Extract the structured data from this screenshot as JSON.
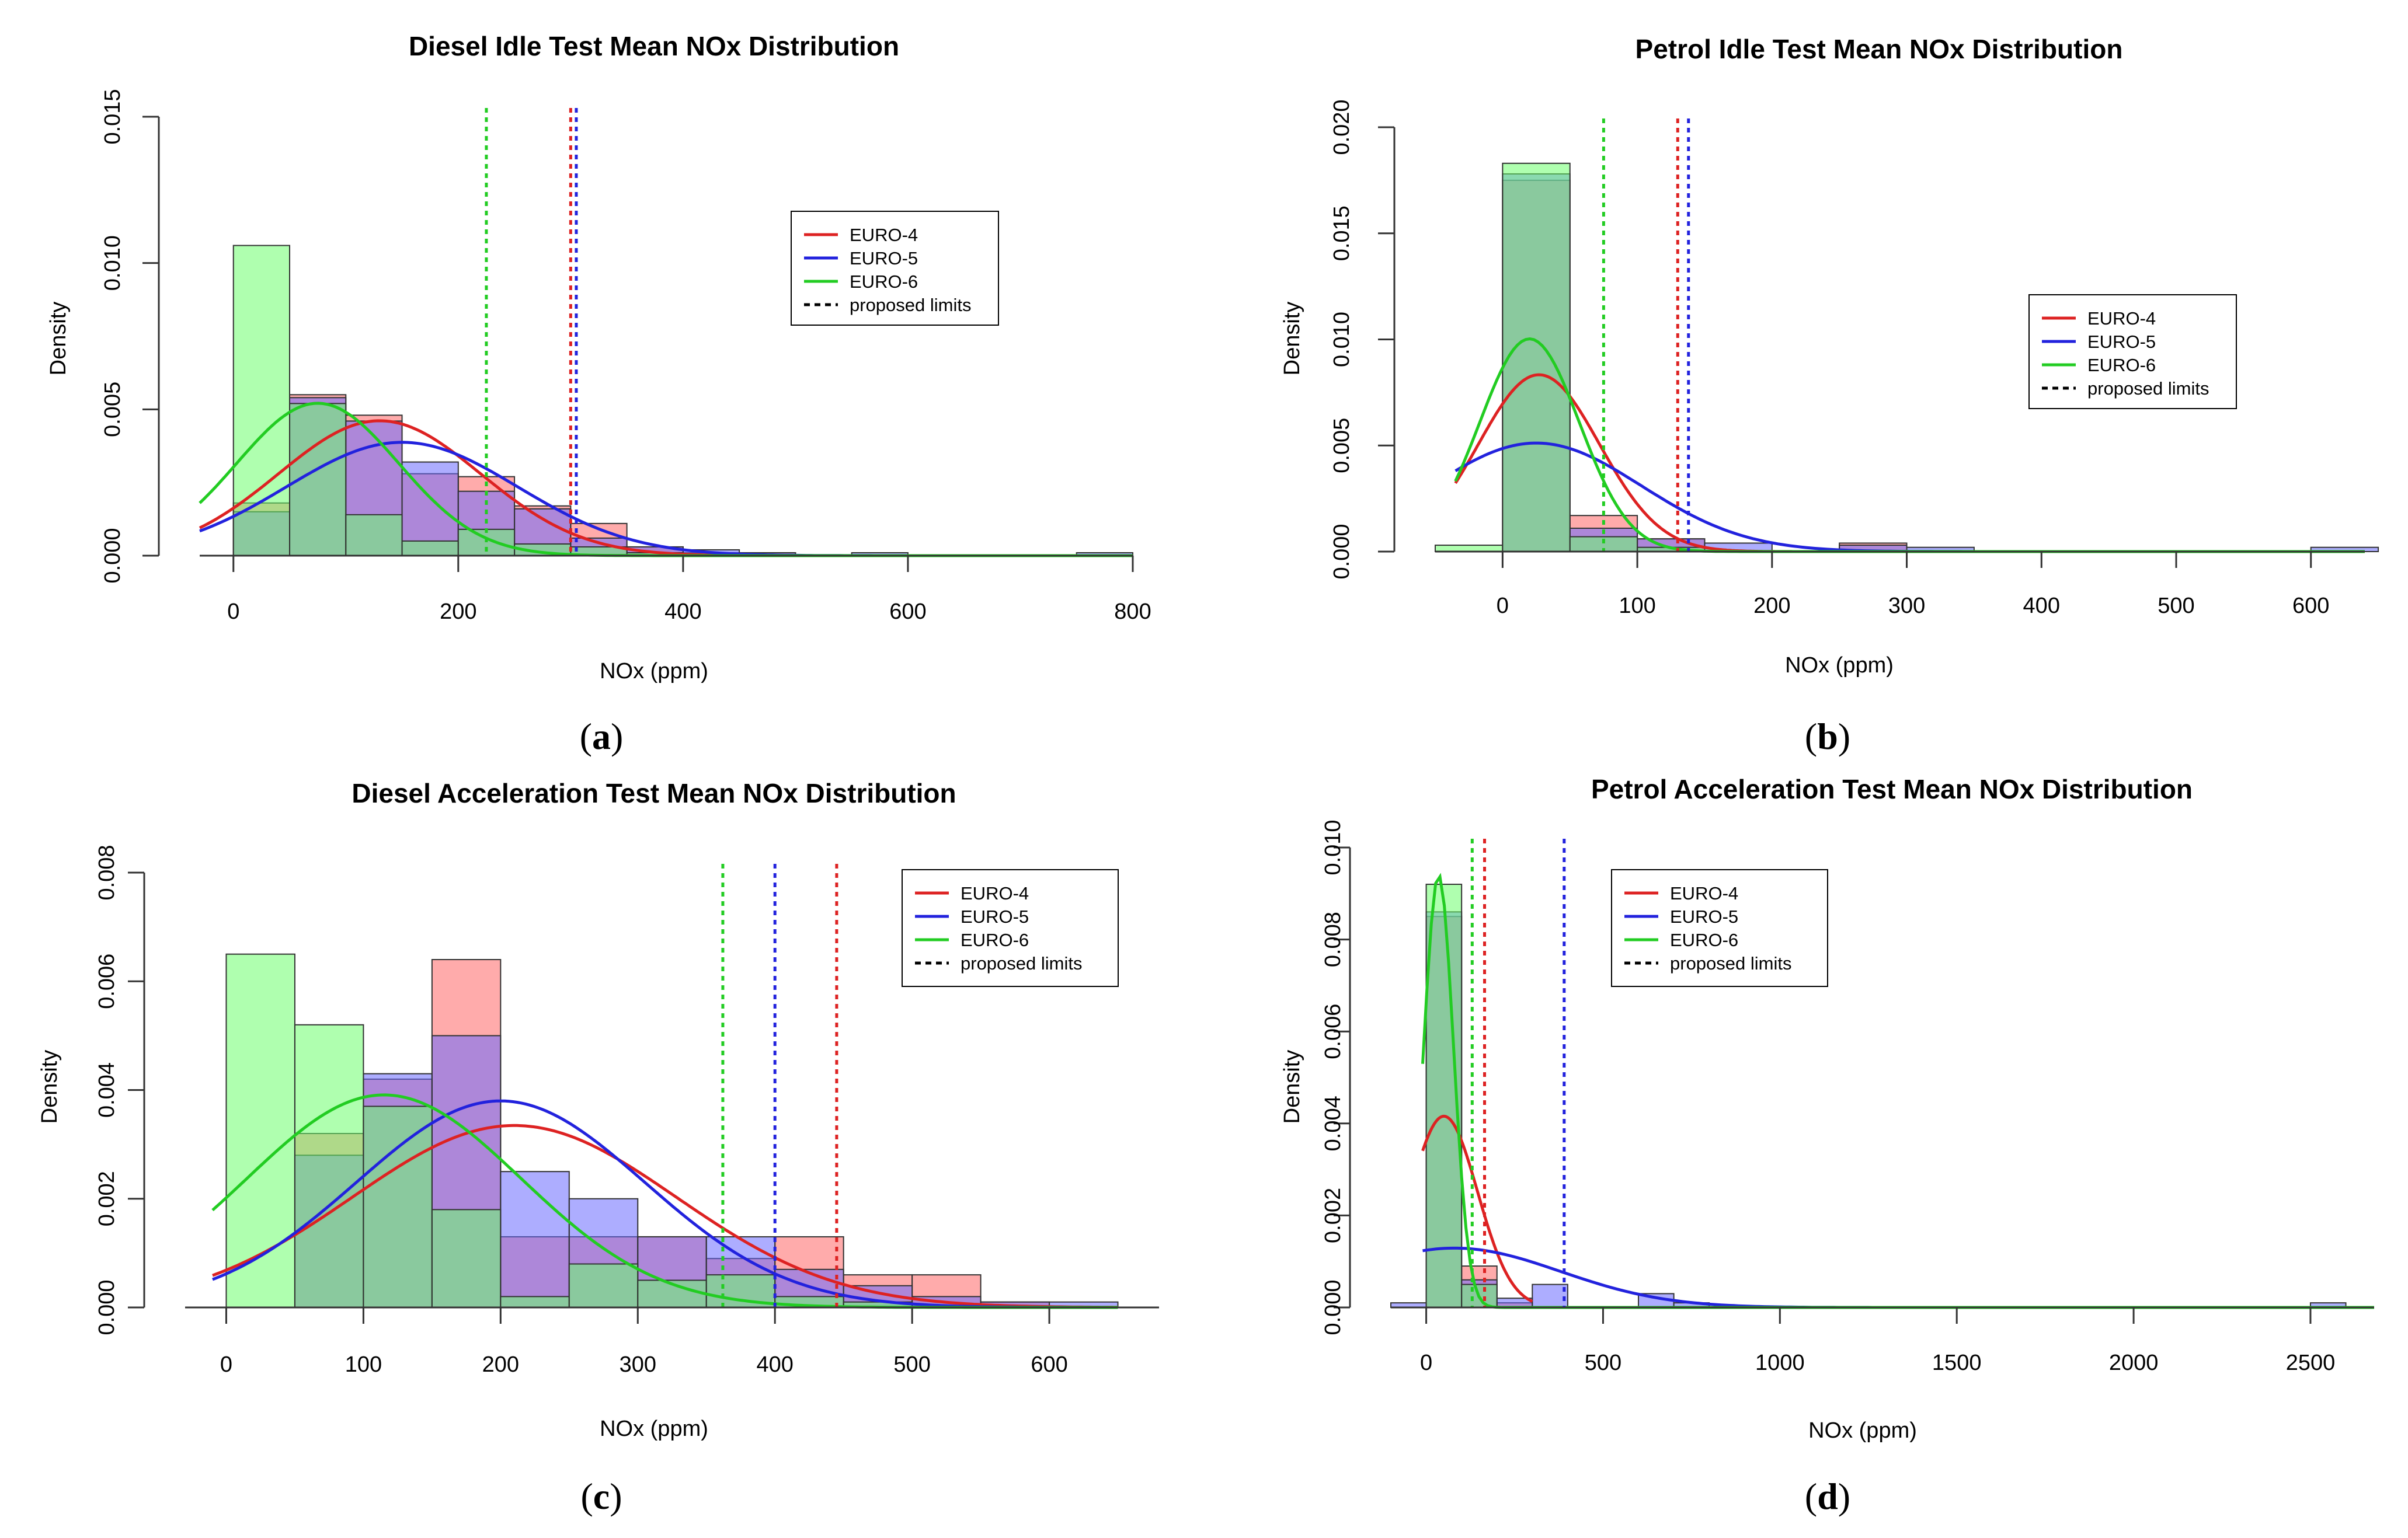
{
  "colors": {
    "euro4_line": "#dd2222",
    "euro5_line": "#2222dd",
    "euro6_line": "#22cc22",
    "euro4_fill": "#ff6666",
    "euro5_fill": "#6a6aff",
    "euro6_fill": "#6dff6d",
    "overlap_46": "#2e8b57",
    "overlap_45": "#8a2fc0",
    "overlap_56": "#3cb393"
  },
  "chart_data": [
    {
      "id": "a",
      "type": "histogram",
      "title": "Diesel Idle Test Mean NOx Distribution",
      "xlabel": "NOx (ppm)",
      "ylabel": "Density",
      "panel_label": "a",
      "xlim": [
        -30,
        800
      ],
      "ylim": [
        0,
        0.015
      ],
      "xticks": [
        0,
        200,
        400,
        600,
        800
      ],
      "xtick_labels": [
        "0",
        "200",
        "400",
        "600",
        "800"
      ],
      "yticks": [
        0,
        0.005,
        0.01,
        0.015
      ],
      "ytick_labels": [
        "0.000",
        "0.005",
        "0.010",
        "0.015"
      ],
      "legend": {
        "position": "top-right",
        "entries": [
          "EURO-4",
          "EURO-5",
          "EURO-6",
          "proposed limits"
        ]
      },
      "series": [
        {
          "name": "EURO-4",
          "bins": [
            [
              0,
              50,
              0.0018
            ],
            [
              50,
              100,
              0.0055
            ],
            [
              100,
              150,
              0.0048
            ],
            [
              150,
              200,
              0.0028
            ],
            [
              200,
              250,
              0.0027
            ],
            [
              250,
              300,
              0.0017
            ],
            [
              300,
              350,
              0.0011
            ],
            [
              350,
              400,
              0.0003
            ],
            [
              400,
              450,
              0.0001
            ],
            [
              450,
              500,
              0.0001
            ]
          ],
          "curve": {
            "mean": 130,
            "sd": 90,
            "scale": 1.04,
            "range": [
              -30,
              800
            ]
          },
          "limit": 300
        },
        {
          "name": "EURO-5",
          "bins": [
            [
              0,
              50,
              0.0015
            ],
            [
              50,
              100,
              0.0054
            ],
            [
              100,
              150,
              0.0046
            ],
            [
              150,
              200,
              0.0032
            ],
            [
              200,
              250,
              0.0022
            ],
            [
              250,
              300,
              0.0016
            ],
            [
              300,
              350,
              0.0006
            ],
            [
              350,
              400,
              0.0003
            ],
            [
              400,
              450,
              0.0002
            ],
            [
              450,
              500,
              0.0001
            ],
            [
              550,
              600,
              0.0001
            ],
            [
              750,
              800,
              0.0001
            ]
          ],
          "curve": {
            "mean": 150,
            "sd": 103,
            "scale": 1.0,
            "range": [
              -30,
              800
            ]
          },
          "limit": 305
        },
        {
          "name": "EURO-6",
          "bins": [
            [
              0,
              50,
              0.0106
            ],
            [
              50,
              100,
              0.0052
            ],
            [
              100,
              150,
              0.0014
            ],
            [
              150,
              200,
              0.0005
            ],
            [
              200,
              250,
              0.0009
            ],
            [
              250,
              300,
              0.0004
            ],
            [
              300,
              350,
              0.0003
            ],
            [
              350,
              400,
              0.0001
            ]
          ],
          "curve": {
            "mean": 75,
            "sd": 72,
            "scale": 0.94,
            "range": [
              -30,
              800
            ]
          },
          "limit": 225
        }
      ]
    },
    {
      "id": "b",
      "type": "histogram",
      "title": "Petrol Idle Test Mean NOx Distribution",
      "xlabel": "NOx (ppm)",
      "ylabel": "Density",
      "panel_label": "b",
      "xlim": [
        -50,
        640
      ],
      "ylim": [
        0,
        0.02
      ],
      "xticks": [
        0,
        100,
        200,
        300,
        400,
        500,
        600
      ],
      "xtick_labels": [
        "0",
        "100",
        "200",
        "300",
        "400",
        "500",
        "600"
      ],
      "yticks": [
        0,
        0.005,
        0.01,
        0.015,
        0.02
      ],
      "ytick_labels": [
        "0.000",
        "0.005",
        "0.010",
        "0.015",
        "0.020"
      ],
      "legend": {
        "position": "right",
        "entries": [
          "EURO-4",
          "EURO-5",
          "EURO-6",
          "proposed limits"
        ]
      },
      "series": [
        {
          "name": "EURO-4",
          "bins": [
            [
              0,
              50,
              0.0175
            ],
            [
              50,
              100,
              0.0017
            ],
            [
              100,
              150,
              0.0006
            ],
            [
              250,
              300,
              0.0004
            ]
          ],
          "curve": {
            "mean": 27,
            "sd": 45,
            "scale": 0.94,
            "range": [
              -35,
              220
            ]
          },
          "limit": 130
        },
        {
          "name": "EURO-5",
          "bins": [
            [
              0,
              50,
              0.0178
            ],
            [
              50,
              100,
              0.0011
            ],
            [
              100,
              150,
              0.0006
            ],
            [
              150,
              200,
              0.0004
            ],
            [
              250,
              300,
              0.0003
            ],
            [
              300,
              350,
              0.0002
            ],
            [
              600,
              650,
              0.0002
            ]
          ],
          "curve": {
            "mean": 25,
            "sd": 78,
            "scale": 1.0,
            "range": [
              -35,
              640
            ]
          },
          "limit": 138
        },
        {
          "name": "EURO-6",
          "bins": [
            [
              -50,
              0,
              0.0003
            ],
            [
              0,
              50,
              0.0183
            ],
            [
              50,
              100,
              0.0007
            ],
            [
              100,
              150,
              0.0002
            ]
          ],
          "curve": {
            "mean": 20,
            "sd": 37,
            "scale": 0.93,
            "range": [
              -35,
              640
            ]
          },
          "limit": 75
        }
      ]
    },
    {
      "id": "c",
      "type": "histogram",
      "title": "Diesel Acceleration Test Mean NOx Distribution",
      "xlabel": "NOx (ppm)",
      "ylabel": "Density",
      "panel_label": "c",
      "xlim": [
        -30,
        680
      ],
      "ylim": [
        0,
        0.008
      ],
      "xticks": [
        0,
        100,
        200,
        300,
        400,
        500,
        600
      ],
      "xtick_labels": [
        "0",
        "100",
        "200",
        "300",
        "400",
        "500",
        "600"
      ],
      "yticks": [
        0,
        0.002,
        0.004,
        0.006,
        0.008
      ],
      "ytick_labels": [
        "0.000",
        "0.002",
        "0.004",
        "0.006",
        "0.008"
      ],
      "legend": {
        "position": "top-right",
        "entries": [
          "EURO-4",
          "EURO-5",
          "EURO-6",
          "proposed limits"
        ]
      },
      "series": [
        {
          "name": "EURO-4",
          "bins": [
            [
              50,
              100,
              0.0032
            ],
            [
              100,
              150,
              0.0042
            ],
            [
              150,
              200,
              0.0064
            ],
            [
              200,
              250,
              0.0013
            ],
            [
              250,
              300,
              0.0013
            ],
            [
              300,
              350,
              0.0013
            ],
            [
              350,
              400,
              0.0009
            ],
            [
              400,
              450,
              0.0013
            ],
            [
              450,
              500,
              0.0006
            ],
            [
              500,
              550,
              0.0006
            ],
            [
              550,
              600,
              0.0001
            ]
          ],
          "curve": {
            "mean": 210,
            "sd": 118,
            "scale": 0.99,
            "range": [
              -10,
              650
            ]
          },
          "limit": 445
        },
        {
          "name": "EURO-5",
          "bins": [
            [
              50,
              100,
              0.0028
            ],
            [
              100,
              150,
              0.0043
            ],
            [
              150,
              200,
              0.005
            ],
            [
              200,
              250,
              0.0025
            ],
            [
              250,
              300,
              0.002
            ],
            [
              300,
              350,
              0.0013
            ],
            [
              350,
              400,
              0.0013
            ],
            [
              400,
              450,
              0.0007
            ],
            [
              450,
              500,
              0.0004
            ],
            [
              500,
              550,
              0.0002
            ],
            [
              550,
              600,
              0.0001
            ],
            [
              600,
              650,
              0.0001
            ]
          ],
          "curve": {
            "mean": 200,
            "sd": 105,
            "scale": 1.0,
            "range": [
              -10,
              650
            ]
          },
          "limit": 400
        },
        {
          "name": "EURO-6",
          "bins": [
            [
              0,
              50,
              0.0065
            ],
            [
              50,
              100,
              0.0052
            ],
            [
              100,
              150,
              0.0037
            ],
            [
              150,
              200,
              0.0018
            ],
            [
              200,
              250,
              0.0002
            ],
            [
              250,
              300,
              0.0008
            ],
            [
              300,
              350,
              0.0005
            ],
            [
              350,
              400,
              0.0006
            ],
            [
              400,
              450,
              0.0002
            ],
            [
              450,
              500,
              0.0001
            ]
          ],
          "curve": {
            "mean": 115,
            "sd": 100,
            "scale": 0.98,
            "range": [
              -10,
              650
            ]
          },
          "limit": 362
        }
      ]
    },
    {
      "id": "d",
      "type": "histogram",
      "title": "Petrol Acceleration Test Mean NOx Distribution",
      "xlabel": "NOx (ppm)",
      "ylabel": "Density",
      "panel_label": "d",
      "xlim": [
        -100,
        2680
      ],
      "ylim": [
        0,
        0.01
      ],
      "xticks": [
        0,
        500,
        1000,
        1500,
        2000,
        2500
      ],
      "xtick_labels": [
        "0",
        "500",
        "1000",
        "1500",
        "2000",
        "2500"
      ],
      "yticks": [
        0,
        0.002,
        0.004,
        0.006,
        0.008,
        0.01
      ],
      "ytick_labels": [
        "0.000",
        "0.002",
        "0.004",
        "0.006",
        "0.008",
        "0.010"
      ],
      "legend": {
        "position": "top-left",
        "entries": [
          "EURO-4",
          "EURO-5",
          "EURO-6",
          "proposed limits"
        ]
      },
      "series": [
        {
          "name": "EURO-4",
          "bins": [
            [
              0,
              100,
              0.0085
            ],
            [
              100,
              200,
              0.0009
            ],
            [
              200,
              300,
              0.0001
            ]
          ],
          "curve": {
            "mean": 50,
            "sd": 95,
            "scale": 0.99,
            "range": [
              -10,
              300
            ]
          },
          "limit": 165
        },
        {
          "name": "EURO-5",
          "bins": [
            [
              -100,
              0,
              0.0001
            ],
            [
              0,
              100,
              0.0086
            ],
            [
              100,
              200,
              0.0006
            ],
            [
              200,
              300,
              0.0002
            ],
            [
              300,
              400,
              0.0005
            ],
            [
              600,
              700,
              0.0003
            ],
            [
              700,
              800,
              0.0001
            ],
            [
              2500,
              2600,
              0.0001
            ]
          ],
          "curve": {
            "mean": 80,
            "sd": 300,
            "scale": 0.97,
            "range": [
              -10,
              2680
            ]
          },
          "limit": 390
        },
        {
          "name": "EURO-6",
          "bins": [
            [
              0,
              100,
              0.0092
            ],
            [
              100,
              200,
              0.0005
            ]
          ],
          "curve": {
            "mean": 35,
            "sd": 42,
            "scale": 0.99,
            "range": [
              -10,
              2680
            ]
          },
          "limit": 130
        }
      ]
    }
  ]
}
